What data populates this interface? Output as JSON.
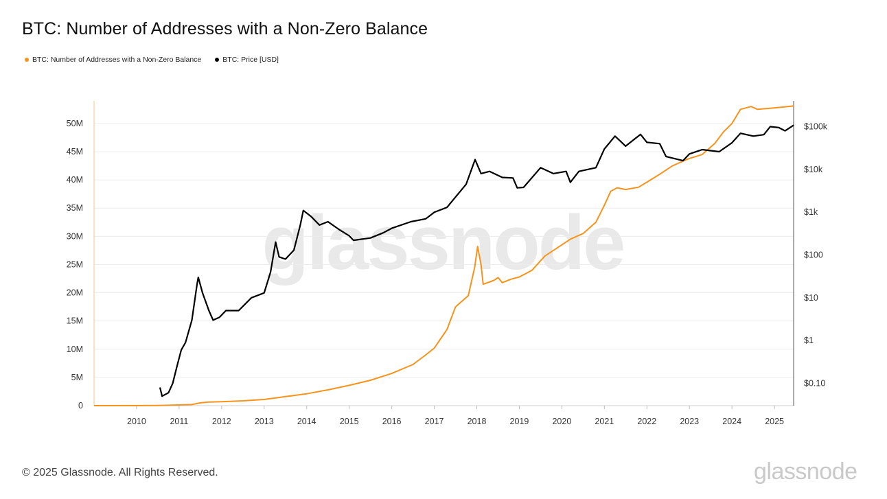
{
  "title": "BTC: Number of Addresses with a Non-Zero Balance",
  "legend": [
    {
      "label": "BTC: Number of Addresses with a Non-Zero Balance",
      "color": "#f7931a"
    },
    {
      "label": "BTC: Price [USD]",
      "color": "#000000"
    }
  ],
  "watermark": "glassnode",
  "footer": {
    "copyright": "© 2025 Glassnode. All Rights Reserved.",
    "brand": "glassnode"
  },
  "chart_data": {
    "type": "line",
    "title": "BTC: Number of Addresses with a Non-Zero Balance",
    "x_ticks": [
      "2010",
      "2011",
      "2012",
      "2013",
      "2014",
      "2015",
      "2016",
      "2017",
      "2018",
      "2019",
      "2020",
      "2021",
      "2022",
      "2023",
      "2024",
      "2025"
    ],
    "x_range": [
      2009.0,
      2025.45
    ],
    "y_left": {
      "ticks": [
        "0",
        "5M",
        "10M",
        "15M",
        "20M",
        "25M",
        "30M",
        "35M",
        "40M",
        "45M",
        "50M"
      ],
      "range": [
        0,
        54000000
      ]
    },
    "y_right": {
      "ticks": [
        "$0.10",
        "$1",
        "$10",
        "$100",
        "$1k",
        "$10k",
        "$100k"
      ],
      "scale": "log",
      "range": [
        0.03,
        400000
      ]
    },
    "series": [
      {
        "name": "BTC: Number of Addresses with a Non-Zero Balance",
        "axis": "left",
        "color": "#f7931a",
        "points": [
          [
            2009.0,
            0
          ],
          [
            2010.0,
            10000
          ],
          [
            2010.5,
            40000
          ],
          [
            2011.0,
            120000
          ],
          [
            2011.3,
            200000
          ],
          [
            2011.5,
            500000
          ],
          [
            2011.7,
            650000
          ],
          [
            2012.0,
            700000
          ],
          [
            2012.5,
            850000
          ],
          [
            2013.0,
            1100000
          ],
          [
            2013.3,
            1400000
          ],
          [
            2013.5,
            1600000
          ],
          [
            2013.8,
            1900000
          ],
          [
            2014.0,
            2100000
          ],
          [
            2014.5,
            2800000
          ],
          [
            2015.0,
            3600000
          ],
          [
            2015.5,
            4500000
          ],
          [
            2016.0,
            5700000
          ],
          [
            2016.5,
            7300000
          ],
          [
            2016.8,
            9000000
          ],
          [
            2017.0,
            10200000
          ],
          [
            2017.3,
            13500000
          ],
          [
            2017.5,
            17500000
          ],
          [
            2017.8,
            19500000
          ],
          [
            2017.95,
            24500000
          ],
          [
            2018.02,
            28200000
          ],
          [
            2018.1,
            25000000
          ],
          [
            2018.15,
            21500000
          ],
          [
            2018.4,
            22200000
          ],
          [
            2018.5,
            22700000
          ],
          [
            2018.6,
            21800000
          ],
          [
            2018.8,
            22400000
          ],
          [
            2019.0,
            22800000
          ],
          [
            2019.3,
            24000000
          ],
          [
            2019.6,
            26500000
          ],
          [
            2019.9,
            28000000
          ],
          [
            2020.2,
            29500000
          ],
          [
            2020.5,
            30500000
          ],
          [
            2020.8,
            32500000
          ],
          [
            2021.0,
            35500000
          ],
          [
            2021.15,
            38000000
          ],
          [
            2021.3,
            38600000
          ],
          [
            2021.5,
            38300000
          ],
          [
            2021.8,
            38700000
          ],
          [
            2022.0,
            39600000
          ],
          [
            2022.3,
            41000000
          ],
          [
            2022.6,
            42500000
          ],
          [
            2022.9,
            43500000
          ],
          [
            2023.0,
            43800000
          ],
          [
            2023.3,
            44500000
          ],
          [
            2023.6,
            46500000
          ],
          [
            2023.8,
            48500000
          ],
          [
            2024.0,
            50000000
          ],
          [
            2024.2,
            52500000
          ],
          [
            2024.45,
            53000000
          ],
          [
            2024.6,
            52500000
          ],
          [
            2024.9,
            52700000
          ],
          [
            2025.2,
            52900000
          ],
          [
            2025.45,
            53100000
          ]
        ]
      },
      {
        "name": "BTC: Price [USD]",
        "axis": "right",
        "color": "#000000",
        "points": [
          [
            2010.55,
            0.08
          ],
          [
            2010.6,
            0.05
          ],
          [
            2010.75,
            0.06
          ],
          [
            2010.85,
            0.1
          ],
          [
            2010.95,
            0.25
          ],
          [
            2011.05,
            0.6
          ],
          [
            2011.15,
            0.9
          ],
          [
            2011.3,
            3
          ],
          [
            2011.42,
            20
          ],
          [
            2011.45,
            30
          ],
          [
            2011.55,
            13
          ],
          [
            2011.7,
            5
          ],
          [
            2011.8,
            3
          ],
          [
            2011.95,
            3.5
          ],
          [
            2012.1,
            5
          ],
          [
            2012.4,
            5
          ],
          [
            2012.7,
            10
          ],
          [
            2013.0,
            13
          ],
          [
            2013.15,
            40
          ],
          [
            2013.27,
            200
          ],
          [
            2013.35,
            90
          ],
          [
            2013.5,
            80
          ],
          [
            2013.7,
            130
          ],
          [
            2013.85,
            500
          ],
          [
            2013.92,
            1100
          ],
          [
            2014.1,
            800
          ],
          [
            2014.3,
            500
          ],
          [
            2014.5,
            600
          ],
          [
            2014.75,
            400
          ],
          [
            2015.0,
            280
          ],
          [
            2015.1,
            220
          ],
          [
            2015.5,
            250
          ],
          [
            2015.8,
            330
          ],
          [
            2016.0,
            420
          ],
          [
            2016.45,
            600
          ],
          [
            2016.8,
            700
          ],
          [
            2017.0,
            1000
          ],
          [
            2017.3,
            1300
          ],
          [
            2017.55,
            2600
          ],
          [
            2017.75,
            4500
          ],
          [
            2017.96,
            17000
          ],
          [
            2018.1,
            8000
          ],
          [
            2018.3,
            9000
          ],
          [
            2018.6,
            6500
          ],
          [
            2018.85,
            6300
          ],
          [
            2018.95,
            3700
          ],
          [
            2019.1,
            3800
          ],
          [
            2019.5,
            11000
          ],
          [
            2019.8,
            8000
          ],
          [
            2020.1,
            9000
          ],
          [
            2020.2,
            5000
          ],
          [
            2020.4,
            9000
          ],
          [
            2020.8,
            11000
          ],
          [
            2021.0,
            30000
          ],
          [
            2021.25,
            60000
          ],
          [
            2021.5,
            35000
          ],
          [
            2021.85,
            66000
          ],
          [
            2022.0,
            43000
          ],
          [
            2022.3,
            40000
          ],
          [
            2022.45,
            20000
          ],
          [
            2022.85,
            16000
          ],
          [
            2023.0,
            23000
          ],
          [
            2023.3,
            29000
          ],
          [
            2023.7,
            26000
          ],
          [
            2024.0,
            42000
          ],
          [
            2024.2,
            70000
          ],
          [
            2024.5,
            60000
          ],
          [
            2024.75,
            65000
          ],
          [
            2024.9,
            100000
          ],
          [
            2025.1,
            95000
          ],
          [
            2025.25,
            80000
          ],
          [
            2025.45,
            108000
          ]
        ]
      }
    ]
  }
}
